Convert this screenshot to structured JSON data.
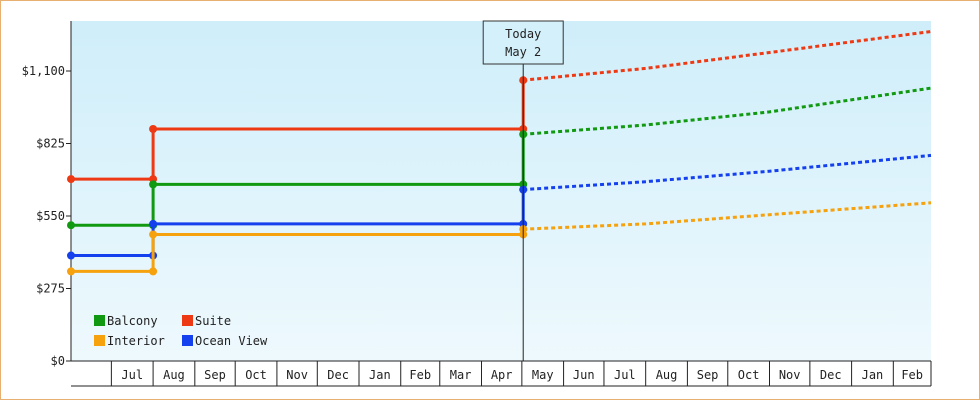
{
  "chart_data": {
    "type": "line",
    "step": true,
    "x_axis": {
      "type": "date",
      "range": [
        "2023-06-01",
        "2025-03-01"
      ],
      "tick_labels": [
        "Jul",
        "Aug",
        "Sep",
        "Oct",
        "Nov",
        "Dec",
        "Jan",
        "Feb",
        "Mar",
        "Apr",
        "May",
        "Jun",
        "Jul",
        "Aug",
        "Sep",
        "Oct",
        "Nov",
        "Dec",
        "Jan",
        "Feb"
      ]
    },
    "y_axis": {
      "range": [
        0,
        1100
      ],
      "ticks": [
        0,
        275,
        550,
        825,
        1100
      ],
      "tick_labels": [
        "$0",
        "$275",
        "$550",
        "$825",
        "$1,100"
      ]
    },
    "today_marker": {
      "date": "2024-05-02",
      "label_line1": "Today",
      "label_line2": "May 2"
    },
    "legend": {
      "placement": "bottom-left",
      "items": [
        {
          "name": "Balcony",
          "color": "#129912"
        },
        {
          "name": "Suite",
          "color": "#ee3a14"
        },
        {
          "name": "Interior",
          "color": "#f5a20e"
        },
        {
          "name": "Ocean View",
          "color": "#1440ee"
        }
      ]
    },
    "series": [
      {
        "name": "Suite",
        "color": "#ee3a14",
        "history": [
          [
            "2023-06-01",
            690
          ],
          [
            "2023-08-01",
            690
          ],
          [
            "2023-08-01",
            880
          ],
          [
            "2024-05-02",
            880
          ],
          [
            "2024-05-02",
            1065
          ]
        ],
        "forecast": [
          [
            "2024-05-02",
            1065
          ],
          [
            "2024-08-01",
            1110
          ],
          [
            "2024-11-01",
            1170
          ],
          [
            "2025-03-01",
            1250
          ]
        ]
      },
      {
        "name": "Balcony",
        "color": "#129912",
        "history": [
          [
            "2023-06-01",
            515
          ],
          [
            "2023-08-01",
            515
          ],
          [
            "2023-08-01",
            670
          ],
          [
            "2024-05-02",
            670
          ],
          [
            "2024-05-02",
            860
          ]
        ],
        "forecast": [
          [
            "2024-05-02",
            860
          ],
          [
            "2024-08-01",
            895
          ],
          [
            "2024-11-01",
            945
          ],
          [
            "2025-03-01",
            1035
          ]
        ]
      },
      {
        "name": "Ocean View",
        "color": "#1440ee",
        "history": [
          [
            "2023-06-01",
            400
          ],
          [
            "2023-08-01",
            400
          ],
          [
            "2023-08-01",
            520
          ],
          [
            "2024-05-02",
            520
          ],
          [
            "2024-05-02",
            650
          ]
        ],
        "forecast": [
          [
            "2024-05-02",
            650
          ],
          [
            "2024-08-01",
            680
          ],
          [
            "2024-11-01",
            720
          ],
          [
            "2025-03-01",
            780
          ]
        ]
      },
      {
        "name": "Interior",
        "color": "#f5a20e",
        "history": [
          [
            "2023-06-01",
            340
          ],
          [
            "2023-08-01",
            340
          ],
          [
            "2023-08-01",
            480
          ],
          [
            "2024-05-02",
            480
          ],
          [
            "2024-05-02",
            500
          ]
        ],
        "forecast": [
          [
            "2024-05-02",
            500
          ],
          [
            "2024-08-01",
            520
          ],
          [
            "2024-11-01",
            555
          ],
          [
            "2025-03-01",
            600
          ]
        ]
      }
    ]
  }
}
